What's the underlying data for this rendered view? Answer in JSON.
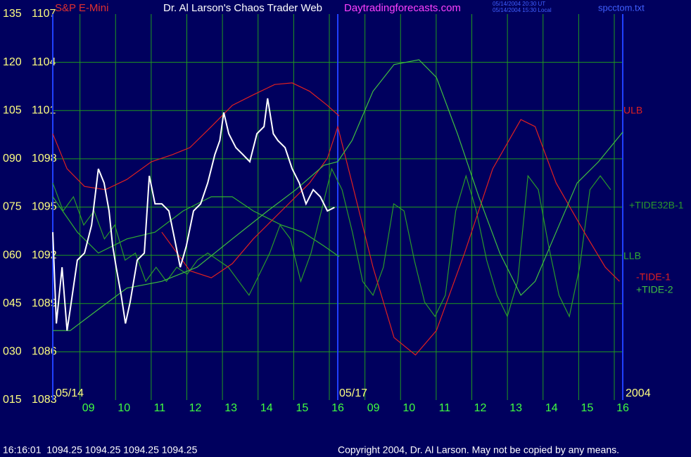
{
  "chart_data": {
    "type": "line",
    "title": "Dr. Al Larson's Chaos Trader Web",
    "instrument": "S&P E-Mini",
    "website": "Daytradingforecasts.com",
    "timestamps": [
      "05/14/2004 20:30 UT",
      "05/14/2004 15:30 Local"
    ],
    "file": "spcctom.txt",
    "date_labels": [
      "05/14",
      "05/17",
      "2004"
    ],
    "status": "16:16:01  1094.25 1094.25 1094.25 1094.25",
    "copyright": "Copyright 2004, Dr. Al Larson. May not be copied by any means.",
    "grid": true,
    "xlim": [
      0,
      16
    ],
    "xticks": [
      {
        "value": 1,
        "label": "09"
      },
      {
        "value": 2,
        "label": "10"
      },
      {
        "value": 3,
        "label": "11"
      },
      {
        "value": 4,
        "label": "12"
      },
      {
        "value": 5,
        "label": "13"
      },
      {
        "value": 6,
        "label": "14"
      },
      {
        "value": 7,
        "label": "15"
      },
      {
        "value": 8,
        "label": "16"
      },
      {
        "value": 9,
        "label": "09"
      },
      {
        "value": 10,
        "label": "10"
      },
      {
        "value": 11,
        "label": "11"
      },
      {
        "value": 12,
        "label": "12"
      },
      {
        "value": 13,
        "label": "13"
      },
      {
        "value": 14,
        "label": "14"
      },
      {
        "value": 15,
        "label": "15"
      },
      {
        "value": 16,
        "label": "16"
      }
    ],
    "ylim": [
      15,
      135
    ],
    "yticks": [
      {
        "value": 15,
        "label": "015"
      },
      {
        "value": 30,
        "label": "030"
      },
      {
        "value": 45,
        "label": "045"
      },
      {
        "value": 60,
        "label": "060"
      },
      {
        "value": 75,
        "label": "075"
      },
      {
        "value": 90,
        "label": "090"
      },
      105,
      120,
      135
    ],
    "y2lim": [
      1083,
      1107
    ],
    "y2ticks": [
      1083,
      1086,
      1089,
      1092,
      1095,
      1098,
      1101,
      1104,
      1107
    ],
    "series": [
      {
        "name": "ULB",
        "color": "#e02020",
        "x": [
          0,
          0.4,
          0.89,
          1.48,
          2.08,
          2.77,
          3.36,
          3.85,
          4.45,
          5.04,
          5.63,
          6.23,
          6.72,
          7.21,
          7.71,
          8.04
        ],
        "values": [
          97.8,
          86.9,
          81.4,
          80.4,
          83.6,
          89.1,
          91.3,
          93.5,
          100.0,
          106.6,
          109.9,
          113.1,
          113.6,
          111.0,
          106.6,
          103.3
        ]
      },
      {
        "name": "LLB",
        "color": "#30b030",
        "x": [
          0,
          0.69,
          1.28,
          2.08,
          2.87,
          3.66,
          4.45,
          5.04,
          5.63,
          6.42,
          7.02,
          7.61,
          8.04
        ],
        "values": [
          78.2,
          67.2,
          60.7,
          65.1,
          67.2,
          73.8,
          78.2,
          78.2,
          73.8,
          69.4,
          67.2,
          62.9,
          59.6
        ]
      },
      {
        "name": "+TIDE32B-1",
        "color": "#2a9a2a",
        "x": [
          0,
          0.29,
          0.58,
          0.87,
          1.16,
          1.45,
          1.74,
          2.03,
          2.32,
          2.61,
          2.9,
          3.19,
          3.48,
          3.77,
          4.06,
          4.35,
          4.64,
          4.93,
          5.22,
          5.51,
          5.8,
          6.09,
          6.38,
          6.67,
          6.96,
          7.25,
          7.54,
          7.83,
          8.12,
          8.41,
          8.7,
          8.99,
          9.28,
          9.57,
          9.86,
          10.15,
          10.44,
          10.73,
          11.02,
          11.31,
          11.6,
          11.89,
          12.18,
          12.47,
          12.76,
          13.05,
          13.34,
          13.63,
          13.92,
          14.21,
          14.5,
          14.79,
          15.08,
          15.37,
          15.66
        ],
        "values": [
          82.5,
          73.8,
          78.2,
          69.4,
          73.8,
          65.1,
          69.4,
          58.5,
          60.7,
          51.9,
          56.3,
          51.9,
          56.3,
          54.1,
          58.5,
          60.7,
          58.5,
          56.3,
          51.9,
          47.6,
          54.1,
          60.7,
          69.4,
          65.1,
          51.9,
          60.7,
          73.8,
          86.9,
          80.4,
          67.2,
          51.9,
          47.6,
          56.3,
          76.0,
          73.8,
          58.5,
          45.4,
          41.0,
          47.6,
          73.8,
          84.7,
          73.8,
          58.5,
          47.6,
          41.0,
          51.9,
          84.7,
          80.4,
          62.9,
          47.6,
          41.0,
          56.3,
          80.4,
          84.7,
          80.4
        ]
      },
      {
        "name": "-TIDE-1",
        "color": "#e02020",
        "x": [
          3.06,
          3.85,
          4.45,
          5.04,
          5.63,
          6.42,
          7.21,
          7.71,
          8.0,
          8.4,
          8.99,
          9.58,
          10.18,
          10.77,
          11.56,
          12.35,
          13.14,
          13.54,
          14.13,
          14.92,
          15.51,
          15.91
        ],
        "values": [
          67.2,
          55.2,
          53.0,
          57.4,
          65.1,
          73.8,
          82.5,
          90.2,
          100.0,
          82.5,
          56.3,
          34.4,
          29.0,
          36.6,
          60.7,
          86.9,
          102.2,
          100.0,
          82.5,
          67.2,
          56.3,
          51.9
        ]
      },
      {
        "name": "+TIDE-2",
        "color": "#40c040",
        "x": [
          0,
          0.49,
          1.28,
          2.08,
          3.06,
          4.05,
          5.04,
          6.03,
          6.82,
          7.61,
          8.0,
          8.4,
          8.99,
          9.58,
          10.28,
          10.77,
          11.36,
          11.96,
          12.55,
          13.14,
          13.54,
          14.13,
          14.72,
          15.32,
          16
        ],
        "values": [
          36.6,
          36.6,
          43.2,
          49.8,
          51.9,
          56.3,
          65.1,
          73.8,
          80.4,
          88.0,
          89.1,
          95.7,
          111.0,
          119.3,
          120.8,
          115.3,
          97.8,
          78.2,
          60.7,
          47.6,
          51.9,
          67.2,
          82.5,
          89.1,
          98.3
        ]
      },
      {
        "color": "#ffffff",
        "x": [
          0,
          0.1,
          0.26,
          0.4,
          0.49,
          0.69,
          0.89,
          1.09,
          1.28,
          1.44,
          1.58,
          1.68,
          1.78,
          1.92,
          2.04,
          2.17,
          2.37,
          2.57,
          2.71,
          2.87,
          3.06,
          3.26,
          3.42,
          3.58,
          3.75,
          3.95,
          4.15,
          4.35,
          4.55,
          4.69,
          4.8,
          4.94,
          5.14,
          5.34,
          5.53,
          5.73,
          5.93,
          6.03,
          6.19,
          6.32,
          6.52,
          6.72,
          6.92,
          7.11,
          7.31,
          7.51,
          7.71,
          7.91
        ],
        "values": [
          67.2,
          38.8,
          56.3,
          36.6,
          43.2,
          58.5,
          60.7,
          69.4,
          86.9,
          82.5,
          73.8,
          62.9,
          56.3,
          47.6,
          38.8,
          45.4,
          58.5,
          60.7,
          84.7,
          76.0,
          76.0,
          73.8,
          65.1,
          56.3,
          62.9,
          73.8,
          76.0,
          82.5,
          91.3,
          95.7,
          104.4,
          97.8,
          93.5,
          91.3,
          89.1,
          97.8,
          100.0,
          108.8,
          97.8,
          95.7,
          93.5,
          86.9,
          82.5,
          76.0,
          80.4,
          78.2,
          73.8,
          74.9
        ]
      }
    ]
  }
}
